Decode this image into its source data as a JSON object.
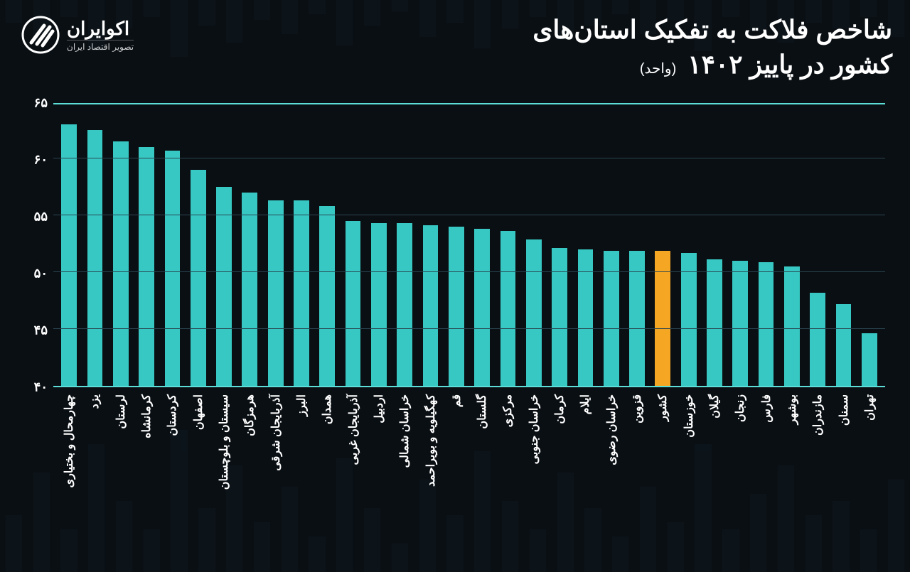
{
  "title_line1": "شاخص فلاکت به تفکیک استان‌های",
  "title_line2": "کشور در پاییز ۱۴۰۲",
  "unit": "(واحد)",
  "logo": {
    "main": "اکوایران",
    "sub": "تصویر اقتصاد ایران"
  },
  "chart": {
    "type": "bar",
    "ylim": [
      40,
      65
    ],
    "yticks": [
      40,
      45,
      50,
      55,
      60,
      65
    ],
    "ytick_labels": [
      "۴۰",
      "۴۵",
      "۵۰",
      "۵۵",
      "۶۰",
      "۶۵"
    ],
    "bar_color": "#37c8c3",
    "highlight_color": "#f5a623",
    "grid_color": "#2a4550",
    "axis_color": "#5cded6",
    "background_color": "#0a0f14",
    "text_color": "#ffffff",
    "title_fontsize": 36,
    "label_fontsize": 16,
    "tick_fontsize": 18,
    "bars": [
      {
        "label": "چهارمحال و بختیاری",
        "value": 63.0,
        "highlight": false
      },
      {
        "label": "یزد",
        "value": 62.5,
        "highlight": false
      },
      {
        "label": "لرستان",
        "value": 61.5,
        "highlight": false
      },
      {
        "label": "کرمانشاه",
        "value": 61.0,
        "highlight": false
      },
      {
        "label": "کردستان",
        "value": 60.7,
        "highlight": false
      },
      {
        "label": "اصفهان",
        "value": 59.0,
        "highlight": false
      },
      {
        "label": "سیستان و بلوچستان",
        "value": 57.5,
        "highlight": false
      },
      {
        "label": "هرمزگان",
        "value": 57.0,
        "highlight": false
      },
      {
        "label": "آذربایجان شرقی",
        "value": 56.3,
        "highlight": false
      },
      {
        "label": "البرز",
        "value": 56.3,
        "highlight": false
      },
      {
        "label": "همدان",
        "value": 55.8,
        "highlight": false
      },
      {
        "label": "آذربایجان غربی",
        "value": 54.5,
        "highlight": false
      },
      {
        "label": "اردبیل",
        "value": 54.3,
        "highlight": false
      },
      {
        "label": "خراسان شمالی",
        "value": 54.3,
        "highlight": false
      },
      {
        "label": "کهگیلویه و بویراحمد",
        "value": 54.1,
        "highlight": false
      },
      {
        "label": "قم",
        "value": 54.0,
        "highlight": false
      },
      {
        "label": "گلستان",
        "value": 53.8,
        "highlight": false
      },
      {
        "label": "مرکزی",
        "value": 53.6,
        "highlight": false
      },
      {
        "label": "خراسان جنوبی",
        "value": 52.9,
        "highlight": false
      },
      {
        "label": "کرمان",
        "value": 52.1,
        "highlight": false
      },
      {
        "label": "ایلام",
        "value": 52.0,
        "highlight": false
      },
      {
        "label": "خراسان رضوی",
        "value": 51.9,
        "highlight": false
      },
      {
        "label": "قزوین",
        "value": 51.9,
        "highlight": false
      },
      {
        "label": "کشور",
        "value": 51.9,
        "highlight": true
      },
      {
        "label": "خوزستان",
        "value": 51.7,
        "highlight": false
      },
      {
        "label": "گیلان",
        "value": 51.1,
        "highlight": false
      },
      {
        "label": "زنجان",
        "value": 51.0,
        "highlight": false
      },
      {
        "label": "فارس",
        "value": 50.9,
        "highlight": false
      },
      {
        "label": "بوشهر",
        "value": 50.5,
        "highlight": false
      },
      {
        "label": "مازندران",
        "value": 48.2,
        "highlight": false
      },
      {
        "label": "سمنان",
        "value": 47.2,
        "highlight": false
      },
      {
        "label": "تهران",
        "value": 44.6,
        "highlight": false
      }
    ]
  },
  "bg_decor_heights": [
    80,
    140,
    60,
    180,
    100,
    60,
    200,
    90,
    150,
    70,
    120,
    50,
    160,
    90,
    40,
    130,
    80,
    170,
    100,
    60,
    140,
    90,
    50,
    120,
    70,
    180,
    60,
    110,
    150,
    80,
    100,
    60,
    130
  ]
}
